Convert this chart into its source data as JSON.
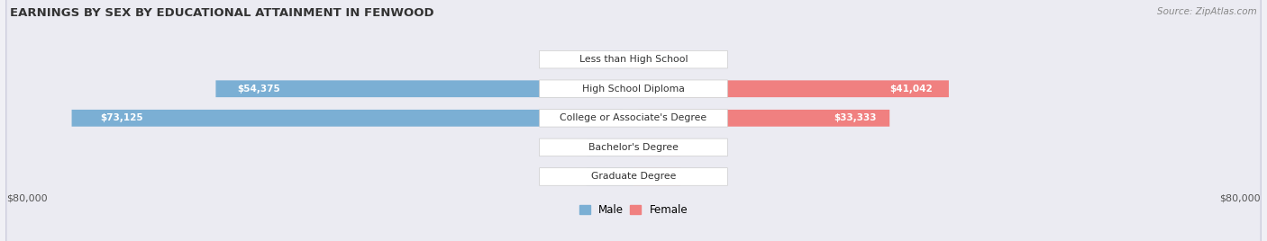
{
  "title": "EARNINGS BY SEX BY EDUCATIONAL ATTAINMENT IN FENWOOD",
  "source": "Source: ZipAtlas.com",
  "categories": [
    "Less than High School",
    "High School Diploma",
    "College or Associate's Degree",
    "Bachelor's Degree",
    "Graduate Degree"
  ],
  "male_values": [
    0,
    54375,
    73125,
    0,
    0
  ],
  "female_values": [
    0,
    41042,
    33333,
    0,
    0
  ],
  "male_color": "#7bafd4",
  "female_color": "#f08080",
  "male_color_light": "#b8d0e8",
  "female_color_light": "#f8b8c0",
  "max_value": 80000,
  "axis_label_left": "$80,000",
  "axis_label_right": "$80,000",
  "legend_male": "Male",
  "legend_female": "Female",
  "title_color": "#333333",
  "source_color": "#888888",
  "row_bg_even": "#ebebf2",
  "row_bg_odd": "#f2f2f8",
  "row_border": "#ccccdd"
}
